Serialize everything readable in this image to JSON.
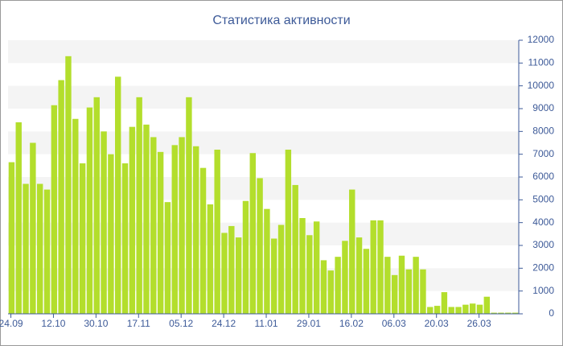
{
  "chart_data": {
    "type": "bar",
    "title": "Статистика активности",
    "categories": [
      "24.09",
      null,
      null,
      null,
      null,
      null,
      "12.10",
      null,
      null,
      null,
      null,
      null,
      "30.10",
      null,
      null,
      null,
      null,
      null,
      "17.11",
      null,
      null,
      null,
      null,
      null,
      "05.12",
      null,
      null,
      null,
      null,
      null,
      "24.12",
      null,
      null,
      null,
      null,
      null,
      "11.01",
      null,
      null,
      null,
      null,
      null,
      "29.01",
      null,
      null,
      null,
      null,
      null,
      "16.02",
      null,
      null,
      null,
      null,
      null,
      "06.03",
      null,
      null,
      null,
      null,
      null,
      "20.03",
      null,
      null,
      null,
      null,
      null,
      "26.03",
      null,
      null,
      null,
      null,
      null
    ],
    "values": [
      6650,
      8400,
      5700,
      7500,
      5700,
      5450,
      9150,
      10250,
      11300,
      8550,
      6600,
      9050,
      9500,
      8000,
      7000,
      10400,
      6600,
      8200,
      9500,
      8300,
      7750,
      7100,
      4900,
      7400,
      7750,
      9500,
      7350,
      6400,
      4800,
      7200,
      3550,
      3850,
      3350,
      4950,
      7050,
      5950,
      4600,
      3300,
      3900,
      7200,
      5650,
      4200,
      3450,
      4050,
      2350,
      1900,
      2500,
      3200,
      5450,
      3350,
      2850,
      4100,
      4100,
      2500,
      1700,
      2550,
      1950,
      2500,
      1950,
      300,
      350,
      950,
      300,
      300,
      400,
      450,
      400,
      750,
      50,
      50,
      50,
      50
    ],
    "color": "#b3de2c",
    "ylim": [
      0,
      12000
    ],
    "yticks": [
      0,
      1000,
      2000,
      3000,
      4000,
      5000,
      6000,
      7000,
      8000,
      9000,
      10000,
      11000,
      12000
    ],
    "grid": true
  }
}
